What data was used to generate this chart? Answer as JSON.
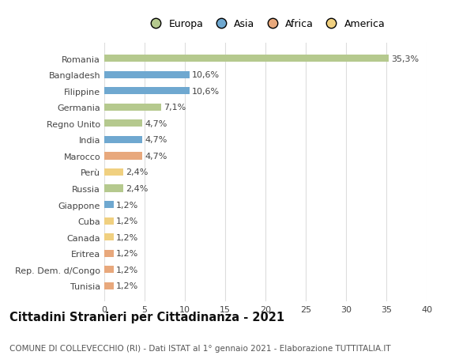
{
  "categories": [
    "Romania",
    "Bangladesh",
    "Filippine",
    "Germania",
    "Regno Unito",
    "India",
    "Marocco",
    "Perù",
    "Russia",
    "Giappone",
    "Cuba",
    "Canada",
    "Eritrea",
    "Rep. Dem. d/Congo",
    "Tunisia"
  ],
  "values": [
    35.3,
    10.6,
    10.6,
    7.1,
    4.7,
    4.7,
    4.7,
    2.4,
    2.4,
    1.2,
    1.2,
    1.2,
    1.2,
    1.2,
    1.2
  ],
  "labels": [
    "35,3%",
    "10,6%",
    "10,6%",
    "7,1%",
    "4,7%",
    "4,7%",
    "4,7%",
    "2,4%",
    "2,4%",
    "1,2%",
    "1,2%",
    "1,2%",
    "1,2%",
    "1,2%",
    "1,2%"
  ],
  "continents": [
    "Europa",
    "Asia",
    "Asia",
    "Europa",
    "Europa",
    "Asia",
    "Africa",
    "America",
    "Europa",
    "Asia",
    "America",
    "America",
    "Africa",
    "Africa",
    "Africa"
  ],
  "colors": {
    "Europa": "#b5c98e",
    "Asia": "#6fa8d0",
    "Africa": "#e8a87c",
    "America": "#f0d080"
  },
  "legend_labels": [
    "Europa",
    "Asia",
    "Africa",
    "America"
  ],
  "legend_colors": [
    "#b5c98e",
    "#6fa8d0",
    "#e8a87c",
    "#f0d080"
  ],
  "xlim": [
    0,
    40
  ],
  "xticks": [
    0,
    5,
    10,
    15,
    20,
    25,
    30,
    35,
    40
  ],
  "title": "Cittadini Stranieri per Cittadinanza - 2021",
  "subtitle": "COMUNE DI COLLEVECCHIO (RI) - Dati ISTAT al 1° gennaio 2021 - Elaborazione TUTTITALIA.IT",
  "bg_color": "#ffffff",
  "grid_color": "#dddddd",
  "bar_height": 0.45,
  "label_fontsize": 8,
  "tick_fontsize": 8,
  "title_fontsize": 10.5,
  "subtitle_fontsize": 7.5
}
